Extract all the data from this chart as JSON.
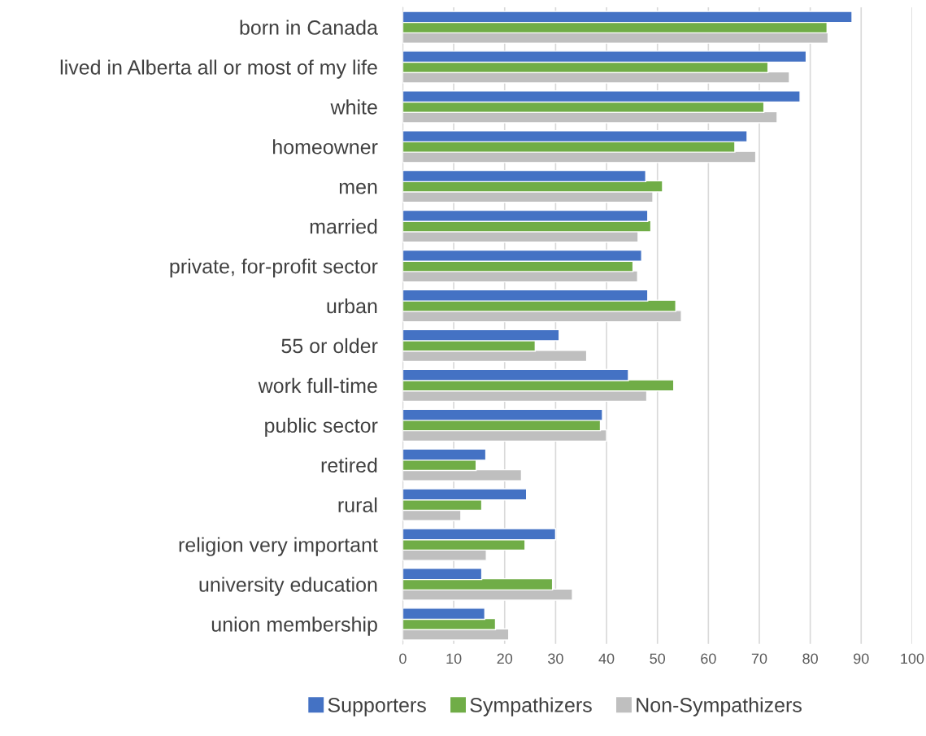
{
  "chart_data": {
    "type": "bar",
    "orientation": "horizontal",
    "categories": [
      "born in Canada",
      "lived in Alberta all or most of my life",
      "white",
      "homeowner",
      "men",
      "married",
      "private, for-profit sector",
      "urban",
      "55 or older",
      "work full-time",
      "public sector",
      "retired",
      "rural",
      "religion very important",
      "university education",
      "union membership"
    ],
    "series": [
      {
        "name": "Supporters",
        "color": "#4472c4",
        "values": [
          88.2,
          79.2,
          78.0,
          67.6,
          47.7,
          48.1,
          46.9,
          48.1,
          30.7,
          44.3,
          39.2,
          16.3,
          24.3,
          30.0,
          15.5,
          16.1
        ]
      },
      {
        "name": "Sympathizers",
        "color": "#70ad47",
        "values": [
          83.3,
          71.7,
          70.9,
          65.2,
          51.0,
          48.7,
          45.2,
          53.6,
          26.0,
          53.2,
          38.8,
          14.4,
          15.5,
          24.0,
          29.4,
          18.2
        ]
      },
      {
        "name": "Non-Sympathizers",
        "color": "#bfbfbf",
        "values": [
          83.5,
          75.9,
          73.5,
          69.3,
          49.1,
          46.2,
          46.1,
          54.7,
          36.1,
          47.9,
          40.0,
          23.3,
          11.4,
          16.4,
          33.3,
          20.8
        ]
      }
    ],
    "xlim": [
      0,
      100
    ],
    "xticks": [
      0,
      10,
      20,
      30,
      40,
      50,
      60,
      70,
      80,
      90,
      100
    ],
    "grid": "x",
    "legend": "bottom"
  }
}
